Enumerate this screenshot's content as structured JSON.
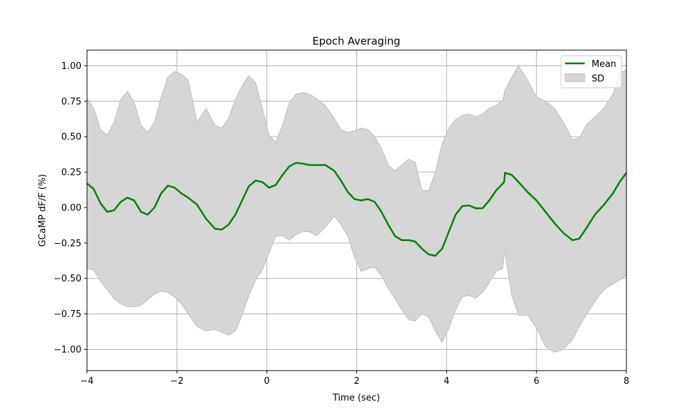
{
  "chart_data": {
    "type": "line",
    "title": "Epoch Averaging",
    "xlabel": "Time (sec)",
    "ylabel": "GCaMP dF/F (%)",
    "xlim": [
      -4,
      8
    ],
    "ylim": [
      -1.15,
      1.11
    ],
    "xticks": [
      -4,
      -2,
      0,
      2,
      4,
      6,
      8
    ],
    "xtick_labels": [
      "−4",
      "−2",
      "0",
      "2",
      "4",
      "6",
      "8"
    ],
    "yticks": [
      -1.0,
      -0.75,
      -0.5,
      -0.25,
      0.0,
      0.25,
      0.5,
      0.75,
      1.0
    ],
    "ytick_labels": [
      "−1.00",
      "−0.75",
      "−0.50",
      "−0.25",
      "0.00",
      "0.25",
      "0.50",
      "0.75",
      "1.00"
    ],
    "grid": true,
    "legend_position": "top-right",
    "legend": {
      "mean_label": "Mean",
      "sd_label": "SD"
    },
    "colors": {
      "mean": "#008000",
      "sd_fill": "#d6d6d6",
      "sd_edge": "#bdbdbd",
      "grid": "#b0b0b0"
    },
    "series": [
      {
        "name": "Mean",
        "x": [
          -4.0,
          -3.85,
          -3.7,
          -3.55,
          -3.4,
          -3.25,
          -3.1,
          -2.95,
          -2.8,
          -2.65,
          -2.5,
          -2.35,
          -2.2,
          -2.05,
          -1.9,
          -1.75,
          -1.55,
          -1.35,
          -1.15,
          -1.0,
          -0.85,
          -0.7,
          -0.55,
          -0.4,
          -0.25,
          -0.1,
          0.05,
          0.2,
          0.35,
          0.5,
          0.65,
          0.8,
          0.95,
          1.1,
          1.3,
          1.5,
          1.65,
          1.8,
          1.95,
          2.1,
          2.25,
          2.4,
          2.55,
          2.7,
          2.85,
          3.0,
          3.15,
          3.3,
          3.45,
          3.6,
          3.75,
          3.9,
          4.05,
          4.2,
          4.35,
          4.5,
          4.65,
          4.8,
          4.95,
          5.1,
          5.25,
          5.28,
          5.3,
          5.45,
          5.6,
          5.8,
          6.0,
          6.2,
          6.4,
          6.6,
          6.8,
          6.95,
          7.1,
          7.3,
          7.5,
          7.7,
          7.85,
          8.0
        ],
        "y": [
          0.17,
          0.13,
          0.03,
          -0.03,
          -0.02,
          0.04,
          0.07,
          0.05,
          -0.03,
          -0.05,
          0.0,
          0.1,
          0.155,
          0.14,
          0.1,
          0.07,
          0.02,
          -0.08,
          -0.15,
          -0.155,
          -0.12,
          -0.05,
          0.05,
          0.15,
          0.19,
          0.18,
          0.14,
          0.16,
          0.23,
          0.29,
          0.315,
          0.31,
          0.3,
          0.3,
          0.3,
          0.26,
          0.19,
          0.11,
          0.06,
          0.05,
          0.06,
          0.04,
          -0.03,
          -0.12,
          -0.2,
          -0.23,
          -0.23,
          -0.24,
          -0.29,
          -0.33,
          -0.34,
          -0.29,
          -0.17,
          -0.05,
          0.01,
          0.015,
          -0.005,
          -0.005,
          0.05,
          0.12,
          0.17,
          0.18,
          0.245,
          0.23,
          0.18,
          0.11,
          0.05,
          -0.03,
          -0.11,
          -0.18,
          -0.23,
          -0.22,
          -0.15,
          -0.05,
          0.02,
          0.1,
          0.18,
          0.245
        ]
      },
      {
        "name": "SD",
        "x": [
          -4.0,
          -3.85,
          -3.7,
          -3.55,
          -3.4,
          -3.25,
          -3.1,
          -2.95,
          -2.8,
          -2.65,
          -2.5,
          -2.35,
          -2.2,
          -2.05,
          -1.9,
          -1.75,
          -1.55,
          -1.35,
          -1.15,
          -1.0,
          -0.85,
          -0.7,
          -0.55,
          -0.4,
          -0.25,
          -0.1,
          0.05,
          0.2,
          0.35,
          0.5,
          0.65,
          0.8,
          0.95,
          1.1,
          1.3,
          1.5,
          1.65,
          1.8,
          1.95,
          2.1,
          2.25,
          2.4,
          2.55,
          2.7,
          2.85,
          3.0,
          3.15,
          3.3,
          3.45,
          3.6,
          3.75,
          3.9,
          4.05,
          4.2,
          4.35,
          4.5,
          4.65,
          4.8,
          4.95,
          5.1,
          5.25,
          5.28,
          5.3,
          5.45,
          5.6,
          5.8,
          6.0,
          6.2,
          6.4,
          6.6,
          6.8,
          6.95,
          7.1,
          7.3,
          7.5,
          7.7,
          7.85,
          8.0
        ],
        "upper": [
          0.77,
          0.7,
          0.55,
          0.51,
          0.6,
          0.76,
          0.82,
          0.74,
          0.58,
          0.53,
          0.6,
          0.78,
          0.92,
          0.96,
          0.94,
          0.9,
          0.6,
          0.7,
          0.58,
          0.56,
          0.63,
          0.76,
          0.86,
          0.93,
          0.88,
          0.7,
          0.51,
          0.46,
          0.58,
          0.74,
          0.8,
          0.81,
          0.8,
          0.77,
          0.72,
          0.63,
          0.55,
          0.53,
          0.54,
          0.56,
          0.55,
          0.5,
          0.42,
          0.3,
          0.26,
          0.3,
          0.34,
          0.32,
          0.12,
          0.12,
          0.25,
          0.45,
          0.56,
          0.62,
          0.65,
          0.66,
          0.64,
          0.66,
          0.7,
          0.72,
          0.76,
          0.8,
          0.83,
          0.92,
          1.0,
          0.9,
          0.78,
          0.75,
          0.7,
          0.6,
          0.48,
          0.49,
          0.58,
          0.64,
          0.7,
          0.8,
          0.95,
          0.97
        ],
        "lower": [
          -0.43,
          -0.44,
          -0.52,
          -0.58,
          -0.64,
          -0.68,
          -0.7,
          -0.7,
          -0.69,
          -0.65,
          -0.61,
          -0.59,
          -0.6,
          -0.63,
          -0.68,
          -0.75,
          -0.84,
          -0.87,
          -0.86,
          -0.88,
          -0.9,
          -0.87,
          -0.76,
          -0.62,
          -0.51,
          -0.44,
          -0.32,
          -0.2,
          -0.2,
          -0.23,
          -0.19,
          -0.17,
          -0.17,
          -0.2,
          -0.14,
          -0.06,
          -0.12,
          -0.2,
          -0.35,
          -0.45,
          -0.43,
          -0.42,
          -0.48,
          -0.57,
          -0.64,
          -0.72,
          -0.79,
          -0.8,
          -0.75,
          -0.77,
          -0.87,
          -0.95,
          -0.85,
          -0.72,
          -0.63,
          -0.62,
          -0.64,
          -0.6,
          -0.53,
          -0.45,
          -0.43,
          -0.33,
          -0.32,
          -0.62,
          -0.76,
          -0.76,
          -0.85,
          -0.98,
          -1.02,
          -1.0,
          -0.93,
          -0.84,
          -0.76,
          -0.66,
          -0.58,
          -0.54,
          -0.51,
          -0.48
        ]
      }
    ]
  }
}
